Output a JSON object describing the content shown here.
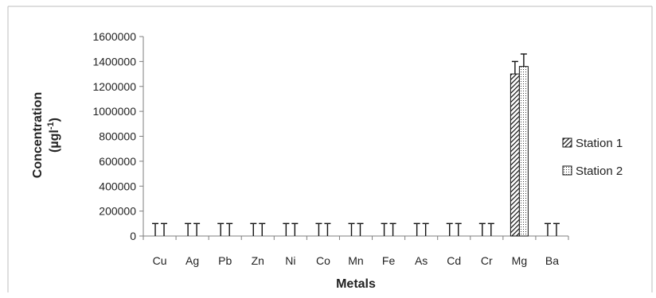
{
  "chart_data": {
    "type": "bar",
    "categories": [
      "Cu",
      "Ag",
      "Pb",
      "Zn",
      "Ni",
      "Co",
      "Mn",
      "Fe",
      "As",
      "Cd",
      "Cr",
      "Mg",
      "Ba"
    ],
    "series": [
      {
        "name": "Station 1",
        "values": [
          0,
          0,
          0,
          0,
          0,
          0,
          0,
          0,
          0,
          0,
          0,
          1300000,
          0
        ],
        "error": [
          100000,
          100000,
          100000,
          100000,
          100000,
          100000,
          100000,
          100000,
          100000,
          100000,
          100000,
          100000,
          100000
        ],
        "pattern": "diagonal-hatch"
      },
      {
        "name": "Station 2",
        "values": [
          0,
          0,
          0,
          0,
          0,
          0,
          0,
          0,
          0,
          0,
          0,
          1360000,
          0
        ],
        "error": [
          100000,
          100000,
          100000,
          100000,
          100000,
          100000,
          100000,
          100000,
          100000,
          100000,
          100000,
          100000,
          100000
        ],
        "pattern": "dotted"
      }
    ],
    "title": "",
    "xlabel": "Metals",
    "ylabel": "Concentration",
    "ylabel_unit": "(µgl-1)",
    "ylim": [
      0,
      1600000
    ],
    "yticks": [
      "0",
      "200000",
      "400000",
      "600000",
      "800000",
      "1000000",
      "1200000",
      "1400000",
      "1600000"
    ],
    "grid": false,
    "legend_position": "right"
  }
}
